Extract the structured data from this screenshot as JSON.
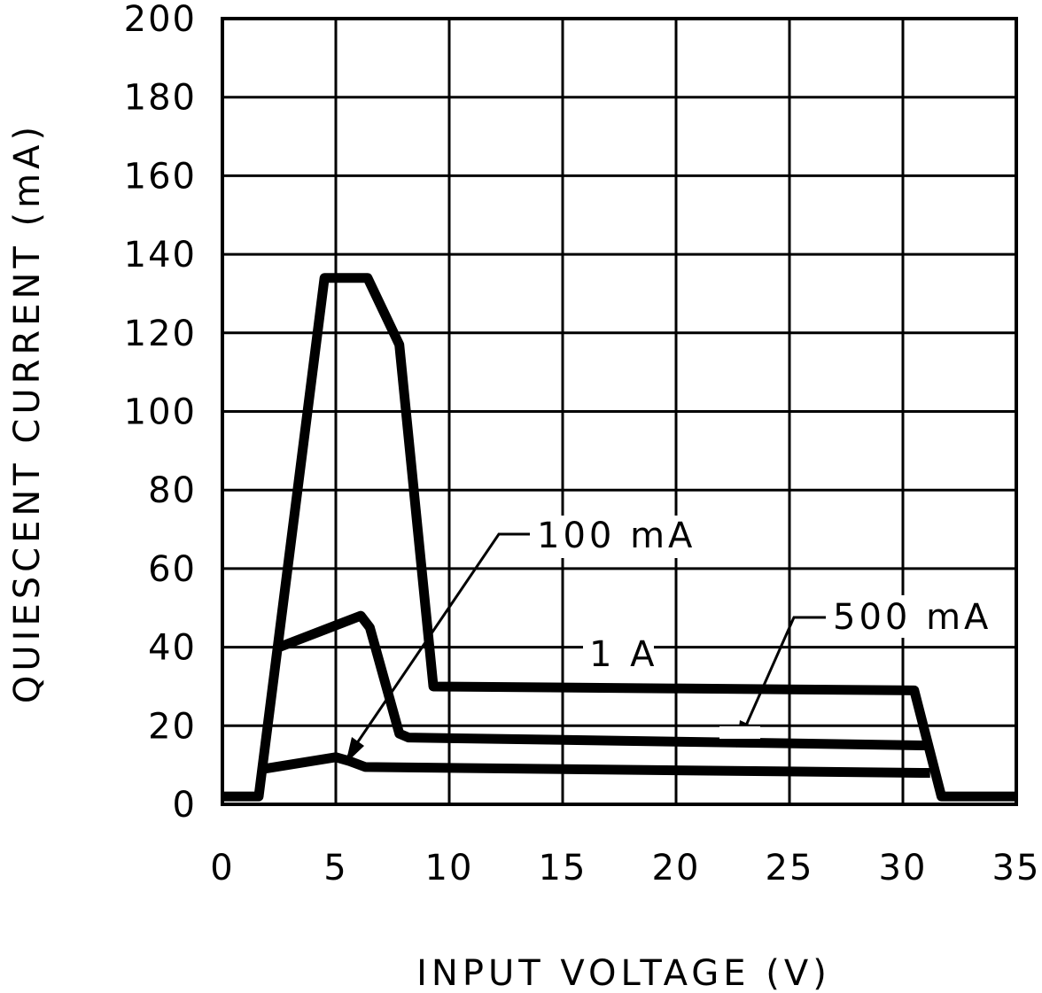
{
  "chart_data": {
    "type": "line",
    "xlabel": "INPUT VOLTAGE (V)",
    "ylabel": "QUIESCENT CURRENT (mA)",
    "xlim": [
      0,
      35
    ],
    "ylim": [
      0,
      200
    ],
    "xticks": [
      "0",
      "5",
      "10",
      "15",
      "20",
      "25",
      "30",
      "35"
    ],
    "yticks": [
      "0",
      "20",
      "40",
      "60",
      "80",
      "100",
      "120",
      "140",
      "160",
      "180",
      "200"
    ],
    "grid": true,
    "series": [
      {
        "name": "1 A",
        "x": [
          0,
          1.6,
          4.5,
          6.4,
          7.8,
          9.3,
          30.5,
          31.7,
          35
        ],
        "y": [
          2,
          2,
          134,
          134,
          117,
          30,
          29,
          2,
          2
        ]
      },
      {
        "name": "500 mA",
        "x": [
          2.5,
          6.1,
          6.5,
          7.8,
          8.2,
          30.8,
          31.2
        ],
        "y": [
          40,
          48,
          45,
          18,
          17,
          15,
          15
        ]
      },
      {
        "name": "100 mA",
        "x": [
          1.8,
          5.0,
          5.6,
          6.3,
          30.8,
          31.2
        ],
        "y": [
          9,
          12,
          11,
          9.5,
          8,
          8
        ]
      }
    ],
    "annotations": [
      {
        "text": "100 mA"
      },
      {
        "text": "1 A"
      },
      {
        "text": "500 mA"
      }
    ]
  }
}
